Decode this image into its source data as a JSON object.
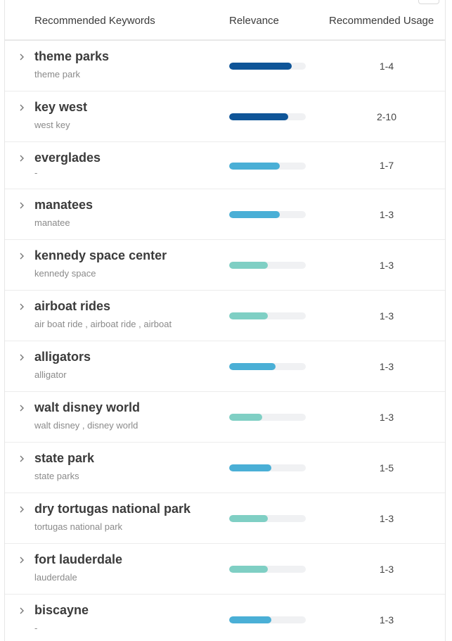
{
  "header": {
    "keywords_label": "Recommended Keywords",
    "relevance_label": "Relevance",
    "usage_label": "Recommended Usage"
  },
  "colors": {
    "dark_blue": "#0f5598",
    "sky_blue": "#4aafd6",
    "teal": "#7fcfc4",
    "track": "#f0f1f3"
  },
  "rows": [
    {
      "keyword": "theme parks",
      "variants": "theme park",
      "relevance": 0.82,
      "color": "#0f5598",
      "usage": "1-4"
    },
    {
      "keyword": "key west",
      "variants": "west key",
      "relevance": 0.77,
      "color": "#0f5598",
      "usage": "2-10"
    },
    {
      "keyword": "everglades",
      "variants": "-",
      "relevance": 0.66,
      "color": "#4aafd6",
      "usage": "1-7"
    },
    {
      "keyword": "manatees",
      "variants": "manatee",
      "relevance": 0.66,
      "color": "#4aafd6",
      "usage": "1-3"
    },
    {
      "keyword": "kennedy space center",
      "variants": "kennedy space",
      "relevance": 0.5,
      "color": "#7fcfc4",
      "usage": "1-3"
    },
    {
      "keyword": "airboat rides",
      "variants": "air boat ride ,   airboat ride ,   airboat",
      "relevance": 0.5,
      "color": "#7fcfc4",
      "usage": "1-3"
    },
    {
      "keyword": "alligators",
      "variants": "alligator",
      "relevance": 0.61,
      "color": "#4aafd6",
      "usage": "1-3"
    },
    {
      "keyword": "walt disney world",
      "variants": "walt disney ,   disney world",
      "relevance": 0.43,
      "color": "#7fcfc4",
      "usage": "1-3"
    },
    {
      "keyword": "state park",
      "variants": "state parks",
      "relevance": 0.55,
      "color": "#4aafd6",
      "usage": "1-5"
    },
    {
      "keyword": "dry tortugas national park",
      "variants": "tortugas national park",
      "relevance": 0.5,
      "color": "#7fcfc4",
      "usage": "1-3"
    },
    {
      "keyword": "fort lauderdale",
      "variants": "lauderdale",
      "relevance": 0.5,
      "color": "#7fcfc4",
      "usage": "1-3"
    },
    {
      "keyword": "biscayne",
      "variants": "-",
      "relevance": 0.55,
      "color": "#4aafd6",
      "usage": "1-3"
    }
  ]
}
